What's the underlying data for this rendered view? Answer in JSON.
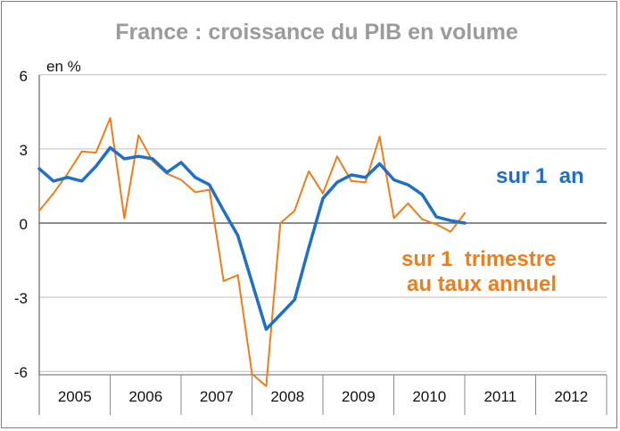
{
  "chart_data": {
    "type": "line",
    "title": "France : croissance du PIB en volume",
    "ylabel": "en %",
    "ylim": [
      -6.5,
      6
    ],
    "yticks": [
      6,
      3,
      0,
      -3,
      -6
    ],
    "yticklabels": [
      "6",
      "3",
      "0",
      "-3",
      "-6"
    ],
    "xlim": [
      2005,
      2013
    ],
    "xticks": [
      "2005",
      "2006",
      "2007",
      "2008",
      "2009",
      "2010",
      "2011",
      "2012"
    ],
    "grid": true,
    "series": [
      {
        "name": "sur 1  an",
        "color": "#1f6fc6",
        "x": [
          2005.0,
          2005.2,
          2005.4,
          2005.6,
          2005.8,
          2006.0,
          2006.2,
          2006.4,
          2006.6,
          2006.8,
          2007.0,
          2007.2,
          2007.4,
          2007.6,
          2007.8,
          2008.0,
          2008.2,
          2008.4,
          2008.6,
          2008.8,
          2009.0,
          2009.2,
          2009.4,
          2009.6,
          2009.8,
          2010.0,
          2010.2,
          2010.4,
          2010.6,
          2010.8,
          2011.0,
          2011.2,
          2011.4,
          2011.6,
          2011.8,
          2012.0,
          2012.2,
          2012.4
        ],
        "y": [
          2.2,
          1.7,
          1.85,
          1.7,
          2.3,
          3.05,
          2.6,
          2.7,
          2.6,
          2.05,
          2.45,
          1.85,
          1.55,
          0.5,
          -0.5,
          -2.4,
          -4.3,
          -3.7,
          -3.1,
          -1.0,
          1.0,
          1.65,
          1.95,
          1.85,
          2.4,
          1.75,
          1.55,
          1.15,
          0.25,
          0.1,
          0.0,
          null,
          null,
          null,
          null,
          null,
          null,
          null
        ]
      },
      {
        "name": "sur 1  trimestre au taux annuel",
        "color": "#ee7d1b",
        "x": [
          2005.0,
          2005.2,
          2005.4,
          2005.6,
          2005.8,
          2006.0,
          2006.2,
          2006.4,
          2006.6,
          2006.8,
          2007.0,
          2007.2,
          2007.4,
          2007.6,
          2007.8,
          2008.0,
          2008.2,
          2008.4,
          2008.6,
          2008.8,
          2009.0,
          2009.2,
          2009.4,
          2009.6,
          2009.8,
          2010.0,
          2010.2,
          2010.4,
          2010.6,
          2010.8,
          2011.0,
          2011.2,
          2011.4,
          2011.6,
          2011.8,
          2012.0,
          2012.2,
          2012.4
        ],
        "y": [
          0.5,
          1.2,
          2.0,
          2.9,
          2.85,
          4.25,
          0.2,
          3.55,
          2.5,
          2.0,
          1.75,
          1.25,
          1.35,
          -2.35,
          -2.1,
          -6.1,
          -6.6,
          0.0,
          0.5,
          2.1,
          1.2,
          2.7,
          1.7,
          1.65,
          3.5,
          0.2,
          0.8,
          0.15,
          -0.05,
          -0.35,
          0.4,
          null,
          null,
          null,
          null,
          null,
          null,
          null
        ]
      }
    ],
    "annotations": {
      "series1_label": "sur 1  an",
      "series2_label_line1": "sur 1  trimestre",
      "series2_label_line2": "au taux annuel"
    }
  }
}
